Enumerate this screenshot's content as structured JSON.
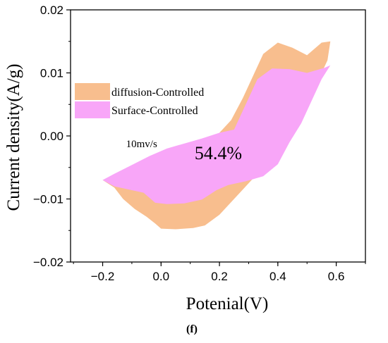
{
  "chart_data": {
    "type": "area",
    "xlabel": "Potenial(V)",
    "ylabel": "Current density(A/g)",
    "xlim": [
      -0.31,
      0.7
    ],
    "ylim": [
      -0.02,
      0.02
    ],
    "xticks": [
      -0.2,
      0.0,
      0.2,
      0.4,
      0.6
    ],
    "xtick_labels": [
      "−0.2",
      "0.0",
      "0.2",
      "0.4",
      "0.6"
    ],
    "yticks": [
      0.02,
      0.01,
      0.0,
      -0.01,
      -0.02
    ],
    "ytick_labels": [
      "0.02",
      "0.01",
      "0.00",
      "−0.01",
      "−0.02"
    ],
    "series": [
      {
        "name": "diffusion-Controlled",
        "color": "#F8BE8E",
        "points": [
          [
            -0.13,
            -0.01
          ],
          [
            -0.09,
            -0.0116
          ],
          [
            -0.05,
            -0.0128
          ],
          [
            -0.02,
            -0.0139
          ],
          [
            0.0,
            -0.0147
          ],
          [
            0.05,
            -0.0148
          ],
          [
            0.11,
            -0.0146
          ],
          [
            0.15,
            -0.0142
          ],
          [
            0.2,
            -0.0125
          ],
          [
            0.28,
            -0.0085
          ],
          [
            0.36,
            -0.0045
          ],
          [
            0.43,
            -0.001
          ],
          [
            0.48,
            0.003
          ],
          [
            0.51,
            0.007
          ],
          [
            0.54,
            0.009
          ],
          [
            0.57,
            0.012
          ],
          [
            0.58,
            0.015
          ],
          [
            0.55,
            0.0148
          ],
          [
            0.5,
            0.0128
          ],
          [
            0.45,
            0.014
          ],
          [
            0.4,
            0.0148
          ],
          [
            0.35,
            0.013
          ],
          [
            0.32,
            0.01
          ],
          [
            0.28,
            0.006
          ],
          [
            0.24,
            0.0025
          ],
          [
            0.19,
            0.0
          ],
          [
            0.14,
            -0.001
          ],
          [
            0.08,
            -0.0018
          ],
          [
            0.0,
            -0.0026
          ],
          [
            -0.07,
            -0.004
          ],
          [
            -0.13,
            -0.0058
          ],
          [
            -0.2,
            -0.007
          ],
          [
            -0.16,
            -0.0082
          ]
        ]
      },
      {
        "name": "Surface-Controlled",
        "color": "#F8A6F8",
        "points": [
          [
            -0.2,
            -0.007
          ],
          [
            -0.16,
            -0.008
          ],
          [
            -0.11,
            -0.0085
          ],
          [
            -0.06,
            -0.009
          ],
          [
            -0.02,
            -0.0106
          ],
          [
            0.02,
            -0.0108
          ],
          [
            0.08,
            -0.0107
          ],
          [
            0.14,
            -0.0101
          ],
          [
            0.19,
            -0.0086
          ],
          [
            0.23,
            -0.0078
          ],
          [
            0.29,
            -0.0072
          ],
          [
            0.35,
            -0.0064
          ],
          [
            0.4,
            -0.0045
          ],
          [
            0.44,
            -0.001
          ],
          [
            0.48,
            0.002
          ],
          [
            0.52,
            0.006
          ],
          [
            0.55,
            0.009
          ],
          [
            0.58,
            0.0112
          ],
          [
            0.56,
            0.0108
          ],
          [
            0.5,
            0.01
          ],
          [
            0.44,
            0.0106
          ],
          [
            0.38,
            0.0107
          ],
          [
            0.33,
            0.009
          ],
          [
            0.29,
            0.005
          ],
          [
            0.25,
            0.001
          ],
          [
            0.2,
            0.0005
          ],
          [
            0.14,
            -0.0004
          ],
          [
            0.08,
            -0.0012
          ],
          [
            0.02,
            -0.002
          ],
          [
            -0.04,
            -0.0032
          ],
          [
            -0.1,
            -0.0046
          ],
          [
            -0.16,
            -0.006
          ]
        ]
      }
    ],
    "annotations": [
      {
        "text": "10mv/s",
        "x": -0.12,
        "y": -0.0018
      },
      {
        "text": "54.4%",
        "x": 0.115,
        "y": -0.0037
      }
    ],
    "legend_position": "middle-left",
    "grid": false
  },
  "caption": "(f)"
}
